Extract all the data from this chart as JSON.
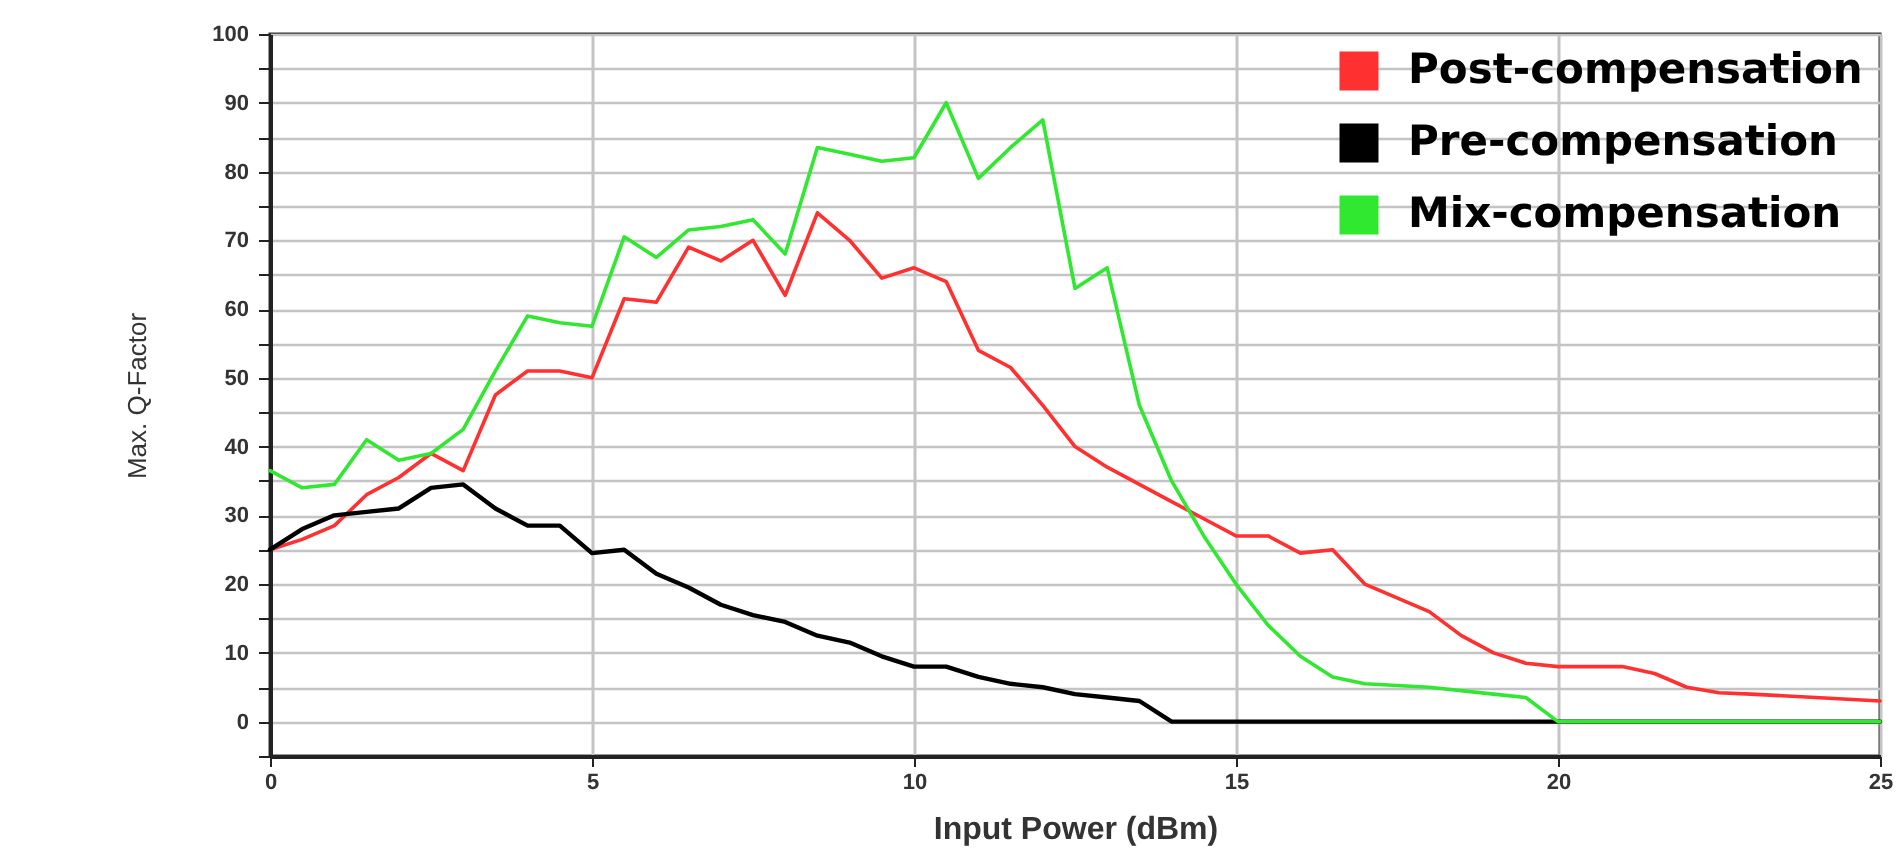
{
  "chart_data": {
    "type": "line",
    "xlabel": "Input Power (dBm)",
    "ylabel": "Max. Q-Factor",
    "xlim": [
      0,
      25
    ],
    "xticks": [
      0,
      5,
      10,
      15,
      20,
      25
    ],
    "ylim": [
      -5,
      100
    ],
    "yticks": [
      {
        "value": -5,
        "label": null
      },
      0,
      {
        "value": 5,
        "label": null
      },
      10,
      {
        "value": 15,
        "label": null
      },
      20,
      {
        "value": 25,
        "label": null
      },
      30,
      {
        "value": 35,
        "label": null
      },
      40,
      {
        "value": 45,
        "label": null
      },
      50,
      {
        "value": 55,
        "label": null
      },
      60,
      {
        "value": 65,
        "label": null
      },
      70,
      {
        "value": 75,
        "label": null
      },
      80,
      {
        "value": 85,
        "label": null
      },
      90,
      {
        "value": 95,
        "label": null
      },
      100
    ],
    "grid": true,
    "legend": "top right",
    "line_style": "solid",
    "series": [
      {
        "name": "Post-compensation",
        "color": "#ff3030",
        "x": [
          0,
          0.5,
          1,
          1.5,
          2,
          2.5,
          3,
          3.5,
          4,
          4.5,
          5,
          5.5,
          6,
          6.5,
          7,
          7.5,
          8,
          8.5,
          9,
          9.5,
          10,
          10.5,
          11,
          11.5,
          12,
          12.5,
          13,
          13.5,
          14,
          14.5,
          15,
          15.5,
          16,
          16.5,
          17,
          18,
          18.5,
          19,
          19.5,
          20,
          21,
          21.5,
          22,
          22.5,
          23,
          24,
          25
        ],
        "values": [
          25,
          26.5,
          28.5,
          33,
          35.5,
          39,
          36.5,
          47.5,
          51,
          51,
          50,
          61.5,
          61,
          69,
          67,
          70,
          62,
          74,
          70,
          64.5,
          66,
          64,
          54,
          51.5,
          46,
          40,
          37,
          34.5,
          32,
          29.5,
          27,
          27,
          24.5,
          25,
          20,
          16,
          12.5,
          10,
          8.5,
          8,
          8,
          7,
          5,
          4.2,
          4,
          3.5,
          3
        ]
      },
      {
        "name": "Pre-compensation",
        "color": "#000000",
        "x": [
          0,
          0.5,
          1,
          1.5,
          2,
          2.5,
          3,
          3.5,
          4,
          4.5,
          5,
          5.5,
          6,
          6.5,
          7,
          7.5,
          8,
          8.5,
          9,
          9.5,
          10,
          10.5,
          11,
          11.5,
          12,
          12.5,
          13,
          13.5,
          14,
          25
        ],
        "values": [
          25,
          28,
          30,
          30.5,
          31,
          34,
          34.5,
          31,
          28.5,
          28.5,
          24.5,
          25,
          21.5,
          19.5,
          17,
          15.5,
          14.5,
          12.5,
          11.5,
          9.5,
          8,
          8,
          6.5,
          5.5,
          5,
          4,
          3.5,
          3,
          0,
          0
        ]
      },
      {
        "name": "Mix-compensation",
        "color": "#30e830",
        "x": [
          0,
          0.5,
          1,
          1.5,
          2,
          2.5,
          3,
          3.5,
          4,
          4.5,
          5,
          5.5,
          6,
          6.5,
          7,
          7.5,
          8,
          8.5,
          9,
          9.5,
          10,
          10.5,
          11,
          11.5,
          12,
          12.5,
          13,
          13.5,
          14,
          14.5,
          15,
          15.5,
          16,
          16.5,
          17,
          18,
          19,
          19.5,
          20,
          25
        ],
        "values": [
          36.5,
          34,
          34.5,
          41,
          38,
          39,
          42.5,
          51,
          59,
          58,
          57.5,
          70.5,
          67.5,
          71.5,
          72,
          73,
          68,
          83.5,
          82.5,
          81.5,
          82,
          90,
          79,
          83.5,
          87.5,
          63,
          66,
          46,
          35,
          27,
          20,
          14,
          9.5,
          6.5,
          5.5,
          5,
          4,
          3.5,
          0,
          0
        ]
      }
    ]
  }
}
